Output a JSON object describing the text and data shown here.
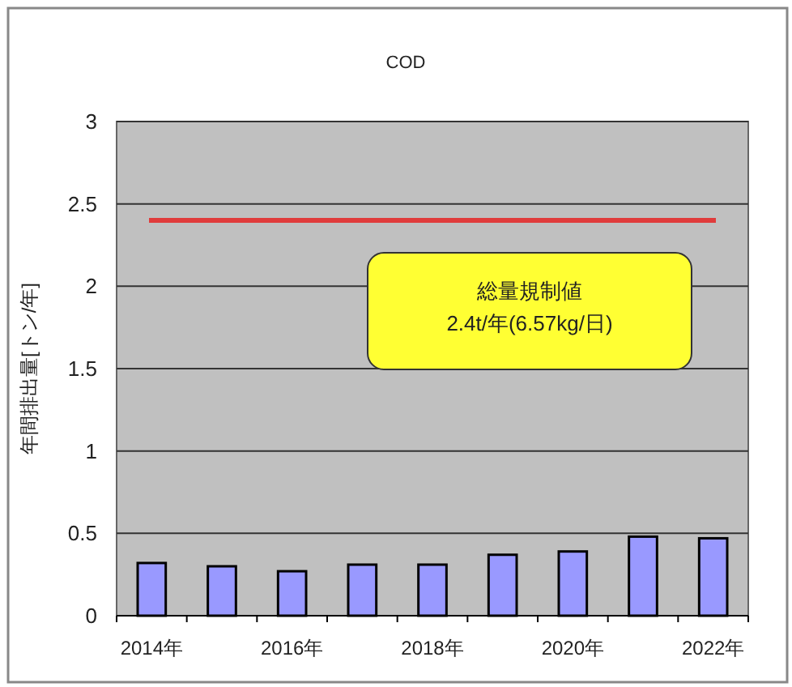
{
  "chart_data": {
    "type": "bar",
    "title": "COD",
    "ylabel": "年間排出量[トン/年]",
    "categories": [
      "2014年",
      null,
      "2016年",
      null,
      "2018年",
      null,
      "2020年",
      null,
      "2022年"
    ],
    "values": [
      0.32,
      0.3,
      0.27,
      0.31,
      0.31,
      0.37,
      0.39,
      0.48,
      0.47
    ],
    "color": "#9999ff",
    "ylim": [
      0,
      3
    ],
    "yticks": [
      0,
      0.5,
      1,
      1.5,
      2,
      2.5,
      3
    ],
    "grid": "y",
    "ref_lines": [
      {
        "axis": "y",
        "value": 2.4,
        "label": "総量規制値\n2.4t/年(6.57kg/日)",
        "color": "#e03c3c"
      }
    ]
  }
}
